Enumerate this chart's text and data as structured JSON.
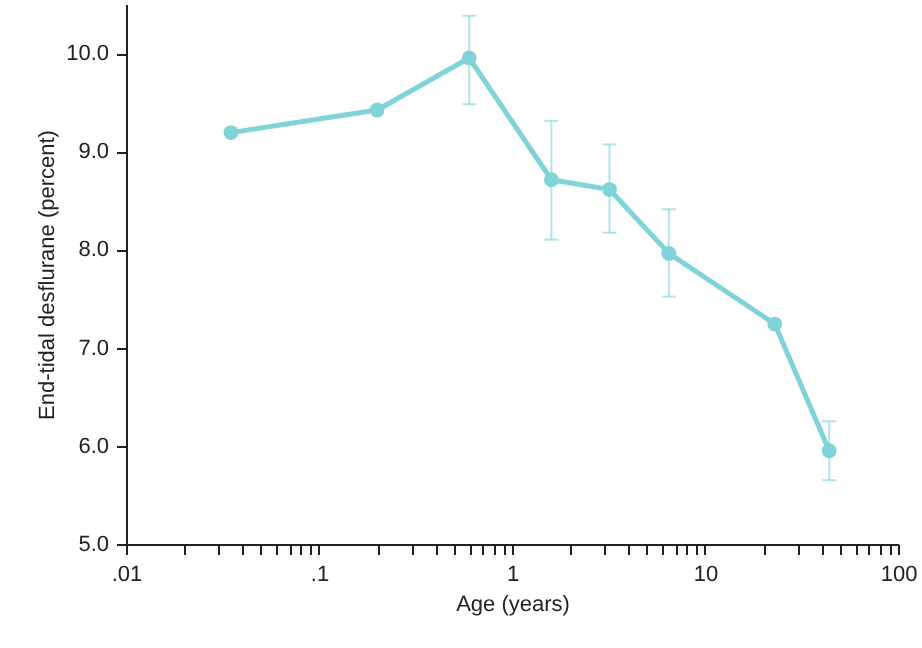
{
  "chart_data": {
    "type": "line",
    "xlabel": "Age (years)",
    "ylabel": "End-tidal desflurane (percent)",
    "log": "x",
    "marker": "circle",
    "line_style": "solid",
    "grid": false,
    "xlim": [
      0.01,
      100
    ],
    "ylim": [
      5.0,
      10.5
    ],
    "xticks": [
      {
        "value": 0.01,
        "label": ".01"
      },
      {
        "value": 0.02,
        "label": null
      },
      {
        "value": 0.03,
        "label": null
      },
      {
        "value": 0.04,
        "label": null
      },
      {
        "value": 0.05,
        "label": null
      },
      {
        "value": 0.06,
        "label": null
      },
      {
        "value": 0.07,
        "label": null
      },
      {
        "value": 0.08,
        "label": null
      },
      {
        "value": 0.09,
        "label": null
      },
      {
        "value": 0.1,
        "label": ".1"
      },
      {
        "value": 0.2,
        "label": null
      },
      {
        "value": 0.3,
        "label": null
      },
      {
        "value": 0.4,
        "label": null
      },
      {
        "value": 0.5,
        "label": null
      },
      {
        "value": 0.6,
        "label": null
      },
      {
        "value": 0.7,
        "label": null
      },
      {
        "value": 0.8,
        "label": null
      },
      {
        "value": 0.9,
        "label": null
      },
      1,
      {
        "value": 2,
        "label": null
      },
      {
        "value": 3,
        "label": null
      },
      {
        "value": 4,
        "label": null
      },
      {
        "value": 5,
        "label": null
      },
      {
        "value": 6,
        "label": null
      },
      {
        "value": 7,
        "label": null
      },
      {
        "value": 8,
        "label": null
      },
      {
        "value": 9,
        "label": null
      },
      10,
      {
        "value": 20,
        "label": null
      },
      {
        "value": 30,
        "label": null
      },
      {
        "value": 40,
        "label": null
      },
      {
        "value": 50,
        "label": null
      },
      {
        "value": 60,
        "label": null
      },
      {
        "value": 70,
        "label": null
      },
      {
        "value": 80,
        "label": null
      },
      {
        "value": 90,
        "label": null
      },
      100
    ],
    "yticks": [
      {
        "value": 5,
        "label": "5.0"
      },
      {
        "value": 6,
        "label": "6.0"
      },
      {
        "value": 7,
        "label": "7.0"
      },
      {
        "value": 8,
        "label": "8.0"
      },
      {
        "value": 9,
        "label": "9.0"
      },
      {
        "value": 10,
        "label": "10.0"
      }
    ],
    "x": [
      0.035,
      0.2,
      0.6,
      1.6,
      3.2,
      6.5,
      23,
      44
    ],
    "series": [
      {
        "color": "#7fd3d9",
        "values": [
          9.19,
          9.42,
          9.95,
          8.71,
          8.61,
          7.96,
          7.24,
          5.95
        ],
        "errors": [
          null,
          null,
          [
            9.48,
            10.38
          ],
          [
            8.1,
            9.31
          ],
          [
            8.17,
            9.07
          ],
          [
            7.52,
            8.41
          ],
          null,
          [
            5.65,
            6.25
          ]
        ]
      }
    ]
  }
}
